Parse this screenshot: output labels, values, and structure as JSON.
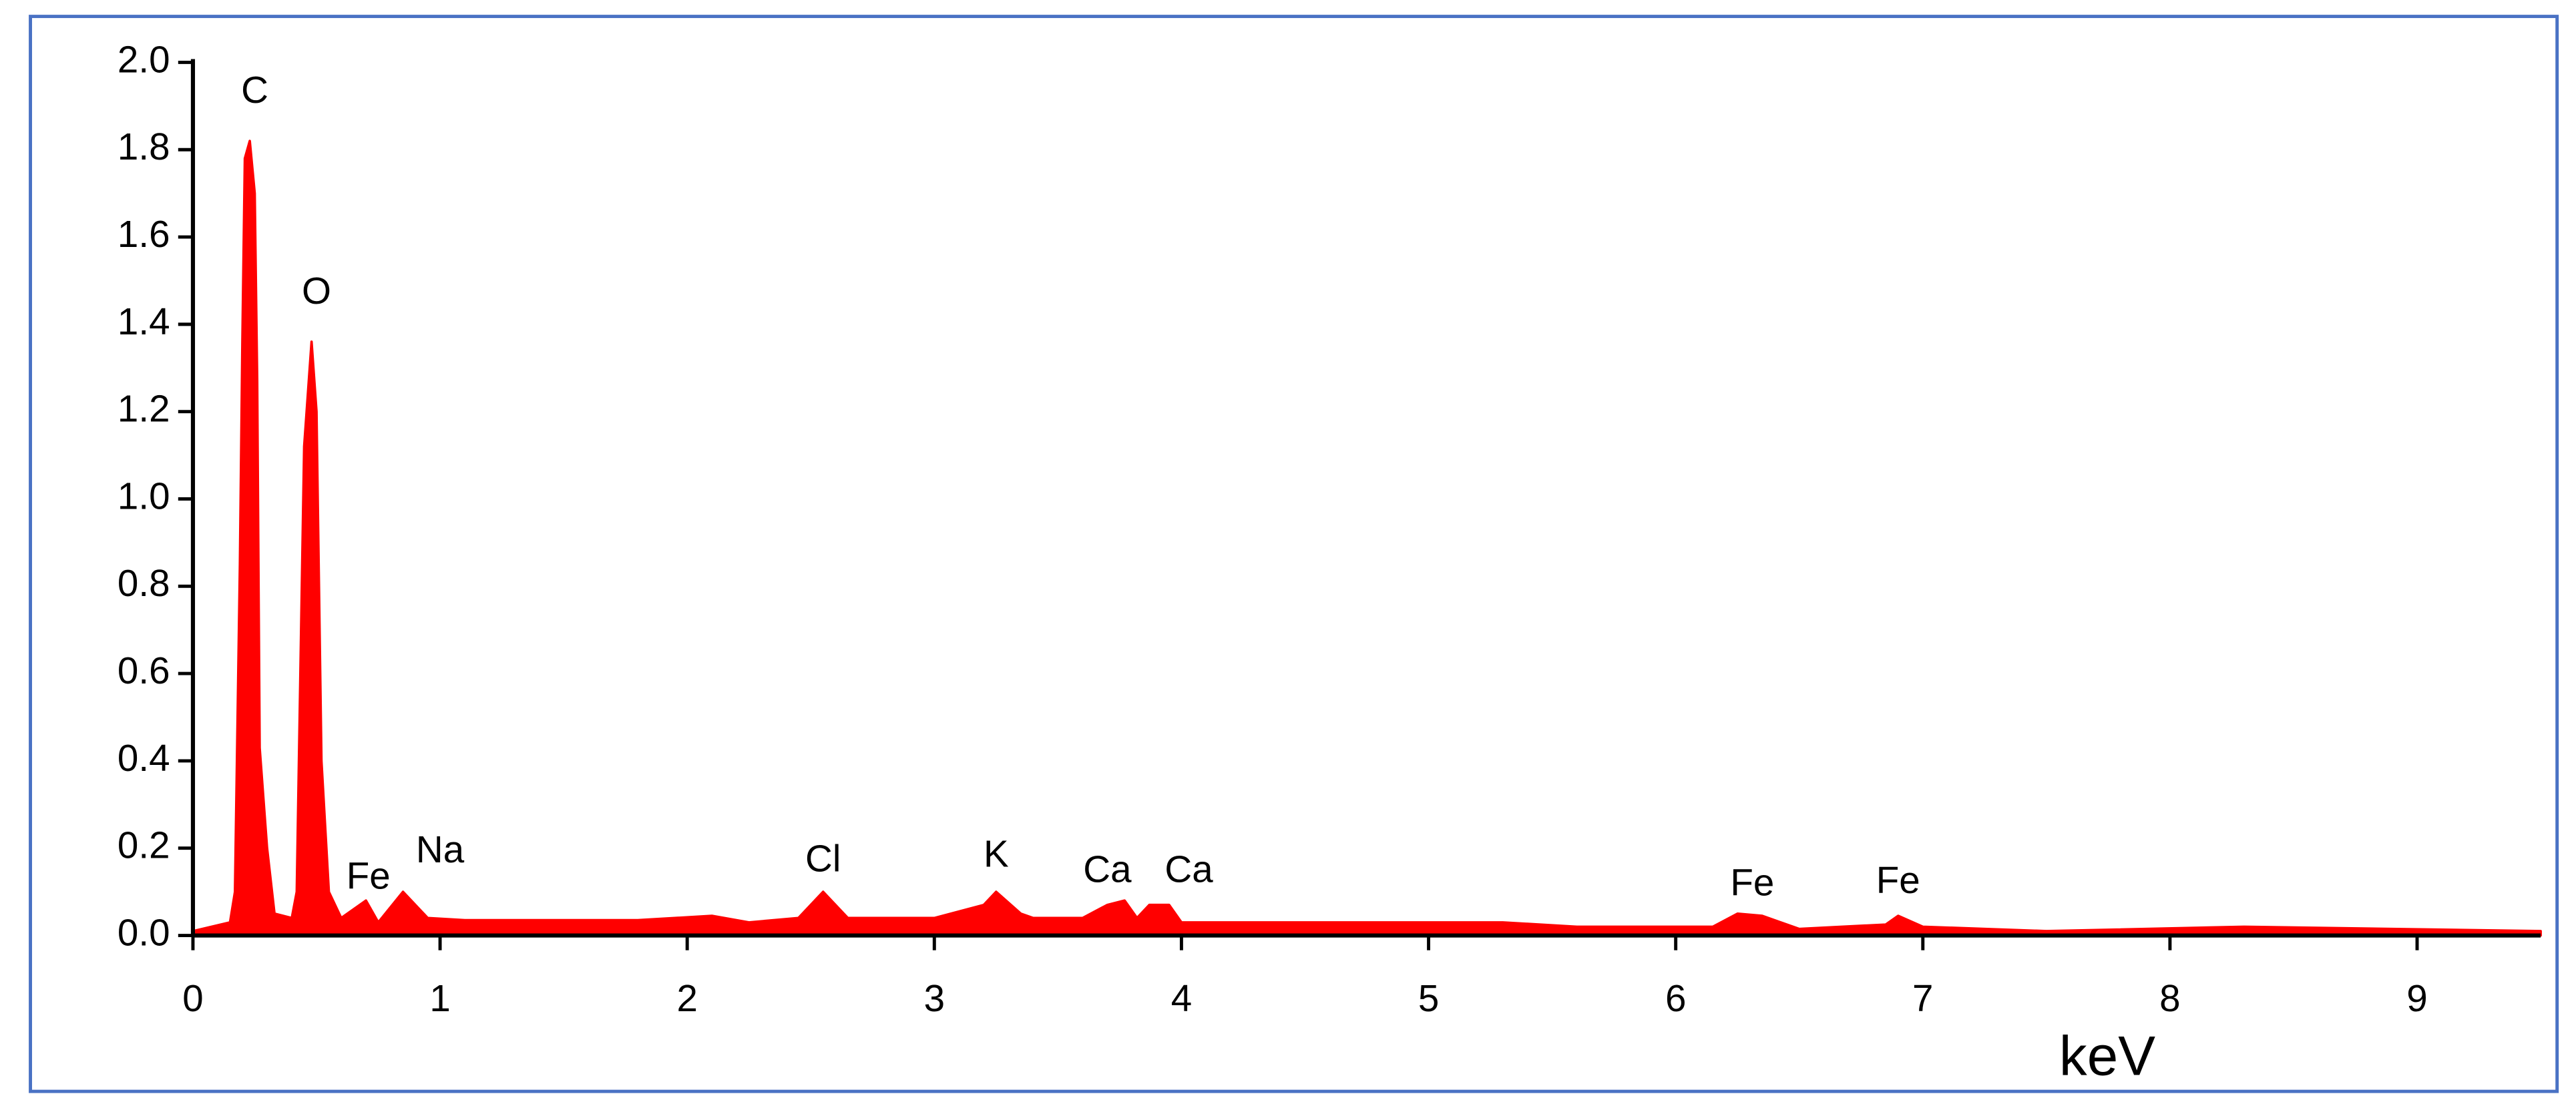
{
  "chart_data": {
    "type": "area",
    "xlabel": "keV",
    "color": "#ff0000",
    "x": [
      0,
      0.15,
      0.17,
      0.19,
      0.2,
      0.21,
      0.23,
      0.25,
      0.26,
      0.27,
      0.3,
      0.33,
      0.4,
      0.42,
      0.45,
      0.48,
      0.5,
      0.52,
      0.55,
      0.6,
      0.7,
      0.75,
      0.85,
      0.95,
      1.1,
      1.8,
      2.1,
      2.25,
      2.45,
      2.55,
      2.65,
      3.0,
      3.2,
      3.25,
      3.35,
      3.4,
      3.6,
      3.7,
      3.77,
      3.82,
      3.87,
      3.95,
      4.0,
      5.3,
      5.6,
      6.15,
      6.25,
      6.35,
      6.5,
      6.85,
      6.9,
      7.0,
      7.5,
      8.3,
      9.5
    ],
    "values": [
      0.01,
      0.03,
      0.1,
      0.85,
      1.36,
      1.78,
      1.82,
      1.7,
      1.27,
      0.43,
      0.2,
      0.05,
      0.04,
      0.1,
      1.12,
      1.36,
      1.2,
      0.4,
      0.1,
      0.04,
      0.08,
      0.03,
      0.1,
      0.04,
      0.035,
      0.035,
      0.045,
      0.03,
      0.04,
      0.1,
      0.04,
      0.04,
      0.07,
      0.1,
      0.05,
      0.04,
      0.04,
      0.07,
      0.08,
      0.04,
      0.07,
      0.07,
      0.03,
      0.03,
      0.02,
      0.02,
      0.05,
      0.045,
      0.015,
      0.025,
      0.045,
      0.02,
      0.01,
      0.02,
      0.01
    ],
    "annotations": [
      {
        "text": "C",
        "x": 0.25,
        "y": 1.93
      },
      {
        "text": "O",
        "x": 0.5,
        "y": 1.47
      },
      {
        "text": "Fe",
        "x": 0.71,
        "y": 0.13
      },
      {
        "text": "Na",
        "x": 1.0,
        "y": 0.19
      },
      {
        "text": "Cl",
        "x": 2.55,
        "y": 0.17
      },
      {
        "text": "K",
        "x": 3.25,
        "y": 0.18
      },
      {
        "text": "Ca",
        "x": 3.7,
        "y": 0.145
      },
      {
        "text": "Ca",
        "x": 4.03,
        "y": 0.145
      },
      {
        "text": "Fe",
        "x": 6.31,
        "y": 0.115
      },
      {
        "text": "Fe",
        "x": 6.9,
        "y": 0.12
      }
    ],
    "xlim": [
      0,
      9.5
    ],
    "ylim": [
      0,
      2.0
    ],
    "xticks": [
      0,
      1,
      2,
      3,
      4,
      5,
      6,
      7,
      8,
      9
    ],
    "yticks": [
      {
        "value": 0,
        "label": "0.0"
      },
      0.2,
      0.4,
      0.6,
      0.8,
      {
        "value": 1,
        "label": "1.0"
      },
      1.2,
      1.4,
      1.6,
      1.8,
      {
        "value": 2,
        "label": "2.0"
      }
    ],
    "grid": false
  }
}
